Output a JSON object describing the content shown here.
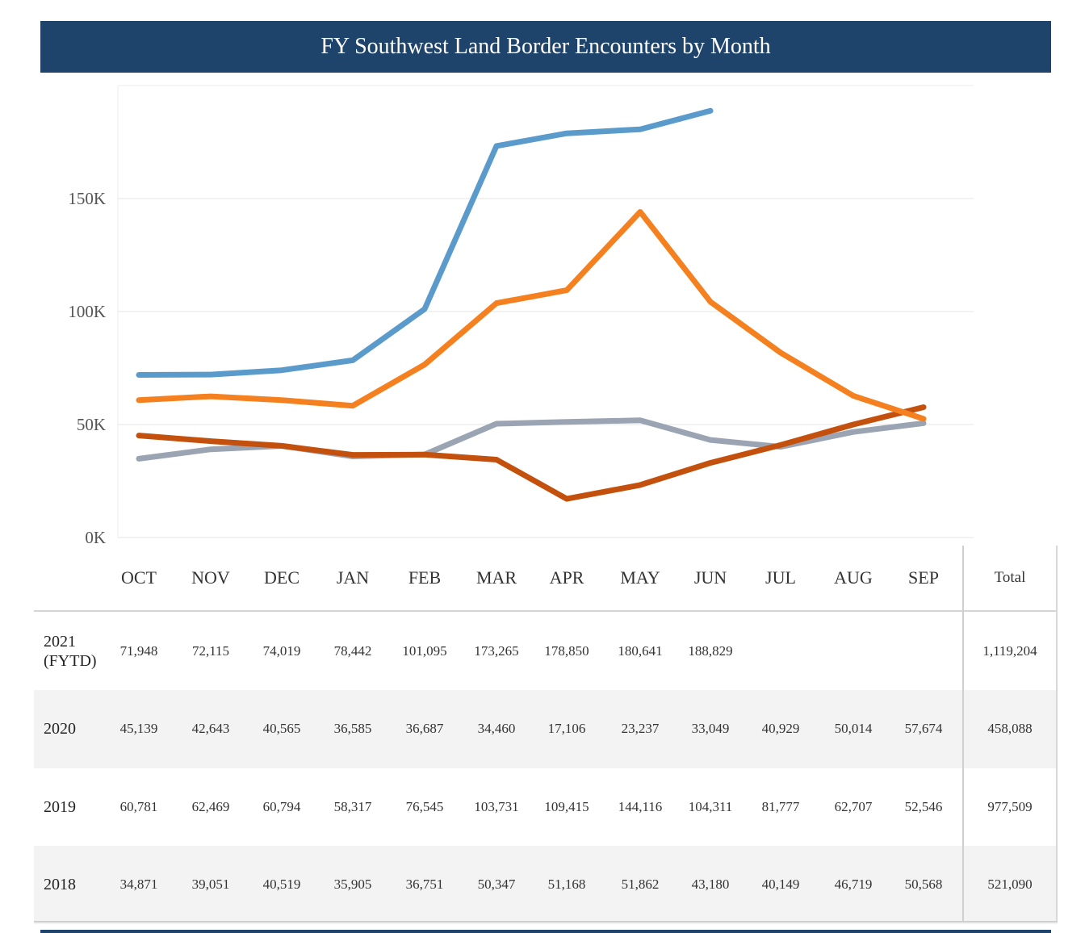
{
  "title": "FY Southwest Land Border Encounters by Month",
  "chart_data": {
    "type": "line",
    "title": "FY Southwest Land Border Encounters by Month",
    "categories": [
      "OCT",
      "NOV",
      "DEC",
      "JAN",
      "FEB",
      "MAR",
      "APR",
      "MAY",
      "JUN",
      "JUL",
      "AUG",
      "SEP"
    ],
    "ylim": [
      0,
      200000
    ],
    "yticks": [
      0,
      50000,
      100000,
      150000
    ],
    "ytick_labels": [
      "0K",
      "50K",
      "100K",
      "150K"
    ],
    "grid": true,
    "series": [
      {
        "name": "2021\n(FYTD)",
        "color": "#5b9bcc",
        "values": [
          71948,
          72115,
          74019,
          78442,
          101095,
          173265,
          178850,
          180641,
          188829,
          null,
          null,
          null
        ],
        "display": [
          "71,948",
          "72,115",
          "74,019",
          "78,442",
          "101,095",
          "173,265",
          "178,850",
          "180,641",
          "188,829",
          "",
          "",
          ""
        ],
        "total": "1,119,204"
      },
      {
        "name": "2020",
        "color": "#c4500d",
        "values": [
          45139,
          42643,
          40565,
          36585,
          36687,
          34460,
          17106,
          23237,
          33049,
          40929,
          50014,
          57674
        ],
        "display": [
          "45,139",
          "42,643",
          "40,565",
          "36,585",
          "36,687",
          "34,460",
          "17,106",
          "23,237",
          "33,049",
          "40,929",
          "50,014",
          "57,674"
        ],
        "total": "458,088"
      },
      {
        "name": "2019",
        "color": "#f5801f",
        "values": [
          60781,
          62469,
          60794,
          58317,
          76545,
          103731,
          109415,
          144116,
          104311,
          81777,
          62707,
          52546
        ],
        "display": [
          "60,781",
          "62,469",
          "60,794",
          "58,317",
          "76,545",
          "103,731",
          "109,415",
          "144,116",
          "104,311",
          "81,777",
          "62,707",
          "52,546"
        ],
        "total": "977,509"
      },
      {
        "name": "2018",
        "color": "#9ba4b2",
        "values": [
          34871,
          39051,
          40519,
          35905,
          36751,
          50347,
          51168,
          51862,
          43180,
          40149,
          46719,
          50568
        ],
        "display": [
          "34,871",
          "39,051",
          "40,519",
          "35,905",
          "36,751",
          "50,347",
          "51,168",
          "51,862",
          "43,180",
          "40,149",
          "46,719",
          "50,568"
        ],
        "total": "521,090"
      }
    ]
  },
  "table": {
    "total_header": "Total",
    "row_order": [
      0,
      1,
      2,
      3
    ]
  }
}
